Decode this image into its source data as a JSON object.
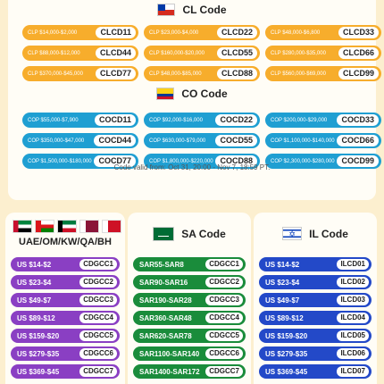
{
  "cl": {
    "title": "CL Code",
    "flag_icon": "chile-flag-icon",
    "color": "#f7ad2c",
    "coupons": [
      {
        "range": "CLP $14,000-$2,000",
        "code": "CLCD11"
      },
      {
        "range": "CLP $23,000-$4,000",
        "code": "CLCD22"
      },
      {
        "range": "CLP $48,000-$6,800",
        "code": "CLCD33"
      },
      {
        "range": "CLP $88,000-$12,000",
        "code": "CLCD44"
      },
      {
        "range": "CLP $160,000-$20,000",
        "code": "CLCD55"
      },
      {
        "range": "CLP $280,000-$35,000",
        "code": "CLCD66"
      },
      {
        "range": "CLP $370,000-$45,000",
        "code": "CLCD77"
      },
      {
        "range": "CLP $48,000-$85,000",
        "code": "CLCD88"
      },
      {
        "range": "CLP $560,000-$69,000",
        "code": "CLCD99"
      }
    ]
  },
  "co": {
    "title": "CO Code",
    "flag_icon": "colombia-flag-icon",
    "color": "#1f9fd2",
    "coupons": [
      {
        "range": "COP $55,000-$7,900",
        "code": "COCD11"
      },
      {
        "range": "COP $92,000-$16,000",
        "code": "COCD22"
      },
      {
        "range": "COP $200,000-$29,000",
        "code": "COCD33"
      },
      {
        "range": "COP $350,000-$47,000",
        "code": "COCD44"
      },
      {
        "range": "COP $630,000-$79,000",
        "code": "COCD55"
      },
      {
        "range": "COP $1,100,000-$140,000",
        "code": "COCD66"
      },
      {
        "range": "COP $1,500,000-$180,000",
        "code": "COCD77"
      },
      {
        "range": "COP $1,800,000-$220,000",
        "code": "COCD88"
      },
      {
        "range": "COP $2,300,000-$280,000",
        "code": "COCD99"
      }
    ]
  },
  "validity": "Code valid from: Oct 31, 20:00 - Nov 7, 18:59 PT.",
  "uae": {
    "label": "UAE/OM/KW/QA/BH",
    "color": "#8a3fc3",
    "coupons": [
      {
        "range": "US $14-$2",
        "code": "CDGCC1"
      },
      {
        "range": "US $23-$4",
        "code": "CDGCC2"
      },
      {
        "range": "US $49-$7",
        "code": "CDGCC3"
      },
      {
        "range": "US $89-$12",
        "code": "CDGCC4"
      },
      {
        "range": "US $159-$20",
        "code": "CDGCC5"
      },
      {
        "range": "US $279-$35",
        "code": "CDGCC6"
      },
      {
        "range": "US $369-$45",
        "code": "CDGCC7"
      }
    ]
  },
  "sa": {
    "title": "SA Code",
    "color": "#1a8c3b",
    "coupons": [
      {
        "range": "SAR55-SAR8",
        "code": "CDGCC1"
      },
      {
        "range": "SAR90-SAR16",
        "code": "CDGCC2"
      },
      {
        "range": "SAR190-SAR28",
        "code": "CDGCC3"
      },
      {
        "range": "SAR360-SAR48",
        "code": "CDGCC4"
      },
      {
        "range": "SAR620-SAR78",
        "code": "CDGCC5"
      },
      {
        "range": "SAR1100-SAR140",
        "code": "CDGCC6"
      },
      {
        "range": "SAR1400-SAR172",
        "code": "CDGCC7"
      }
    ]
  },
  "il": {
    "title": "IL Code",
    "color": "#2349c8",
    "coupons": [
      {
        "range": "US $14-$2",
        "code": "ILCD01"
      },
      {
        "range": "US $23-$4",
        "code": "ILCD02"
      },
      {
        "range": "US $49-$7",
        "code": "ILCD03"
      },
      {
        "range": "US $89-$12",
        "code": "ILCD04"
      },
      {
        "range": "US $159-$20",
        "code": "ILCD05"
      },
      {
        "range": "US $279-$35",
        "code": "ILCD06"
      },
      {
        "range": "US $369-$45",
        "code": "ILCD07"
      }
    ]
  }
}
